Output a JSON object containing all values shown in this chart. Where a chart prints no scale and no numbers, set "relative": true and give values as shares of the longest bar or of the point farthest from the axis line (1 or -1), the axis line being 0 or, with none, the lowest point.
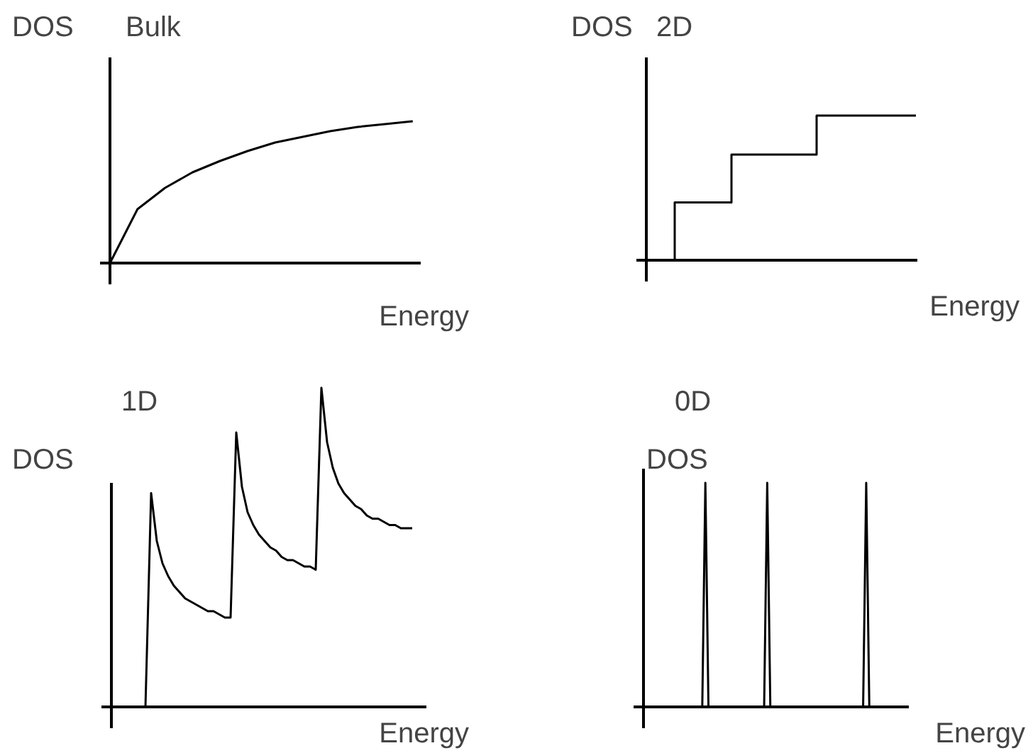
{
  "chart_data": [
    {
      "type": "line",
      "title": "Bulk",
      "ylabel": "DOS",
      "xlabel": "Energy",
      "relative": true,
      "tick_labels": false,
      "color": "#000000",
      "categories": [
        null,
        null,
        null,
        null,
        null,
        null,
        null,
        null,
        null,
        null,
        null,
        null
      ],
      "values": [
        0,
        0.38,
        0.53,
        0.64,
        0.72,
        0.79,
        0.85,
        0.89,
        0.93,
        0.96,
        0.98,
        1.0
      ]
    },
    {
      "type": "step",
      "title": "2D",
      "ylabel": "DOS",
      "xlabel": "Energy",
      "relative": true,
      "tick_labels": false,
      "color": "#000000",
      "categories": [
        null,
        null,
        null,
        null,
        null,
        null,
        null,
        null,
        null,
        null,
        null,
        null,
        null,
        null,
        null,
        null,
        null,
        null,
        null,
        null
      ],
      "values": [
        null,
        0,
        0.4,
        0.4,
        0.4,
        0.4,
        0.73,
        0.73,
        0.73,
        0.73,
        0.73,
        0.73,
        1.0,
        1.0,
        1.0,
        1.0,
        1.0,
        1.0,
        1.0,
        1.0
      ]
    },
    {
      "type": "line",
      "title": "1D",
      "ylabel": "DOS",
      "xlabel": "Energy",
      "relative": true,
      "tick_labels": false,
      "color": "#000000",
      "categories": [
        null,
        null,
        null,
        null,
        null,
        null,
        null,
        null,
        null,
        null,
        null,
        null,
        null,
        null,
        null,
        null,
        null,
        null,
        null,
        null,
        null,
        null,
        null,
        null,
        null,
        null,
        null,
        null,
        null,
        null,
        null,
        null,
        null,
        null,
        null,
        null,
        null,
        null,
        null,
        null,
        null,
        null,
        null,
        null,
        null,
        null,
        null,
        null,
        null,
        null,
        null,
        null,
        null,
        null
      ],
      "values": [
        null,
        null,
        null,
        null,
        null,
        null,
        0,
        0.67,
        0.52,
        0.45,
        0.41,
        0.38,
        0.36,
        0.34,
        0.33,
        0.32,
        0.31,
        0.3,
        0.3,
        0.29,
        0.28,
        0.28,
        0.86,
        0.69,
        0.61,
        0.57,
        0.54,
        0.52,
        0.5,
        0.49,
        0.47,
        0.46,
        0.46,
        0.45,
        0.44,
        0.44,
        0.43,
        1.0,
        0.83,
        0.75,
        0.7,
        0.67,
        0.65,
        0.63,
        0.62,
        0.6,
        0.59,
        0.59,
        0.58,
        0.57,
        0.57,
        0.56,
        0.56,
        0.56
      ]
    },
    {
      "type": "line",
      "title": "0D",
      "ylabel": "DOS",
      "xlabel": "Energy",
      "relative": true,
      "tick_labels": false,
      "color": "#000000",
      "categories": [
        null,
        null,
        null,
        null,
        null,
        null,
        null,
        null,
        null,
        null,
        null,
        null,
        null,
        null,
        null,
        null,
        null,
        null,
        null,
        null,
        null,
        null,
        null,
        null,
        null,
        null,
        null,
        null,
        null,
        null,
        null,
        null,
        null,
        null,
        null,
        null,
        null,
        null,
        null,
        null,
        null,
        null,
        null,
        null,
        null,
        null,
        null,
        null,
        null,
        null,
        null,
        null,
        null,
        null,
        null,
        null,
        null,
        null,
        null,
        null,
        null,
        null,
        null,
        null,
        null,
        null,
        null,
        null,
        null,
        null,
        null,
        null,
        null,
        null,
        null,
        null,
        null,
        null,
        null,
        null,
        null,
        null,
        null,
        null,
        null,
        null
      ],
      "values": [
        0,
        0,
        0,
        0,
        0,
        0,
        0,
        0,
        0,
        0,
        0,
        0,
        0,
        0,
        0,
        0,
        0,
        0,
        0,
        0,
        1,
        0,
        0,
        0,
        0,
        0,
        0,
        0,
        0,
        0,
        0,
        0,
        0,
        0,
        0,
        0,
        0,
        0,
        0,
        0,
        1,
        0,
        0,
        0,
        0,
        0,
        0,
        0,
        0,
        0,
        0,
        0,
        0,
        0,
        0,
        0,
        0,
        0,
        0,
        0,
        0,
        0,
        0,
        0,
        0,
        0,
        0,
        0,
        0,
        0,
        0,
        0,
        1,
        0,
        0,
        0,
        0,
        0,
        0,
        0,
        0,
        0,
        0,
        0,
        0,
        0
      ]
    }
  ]
}
